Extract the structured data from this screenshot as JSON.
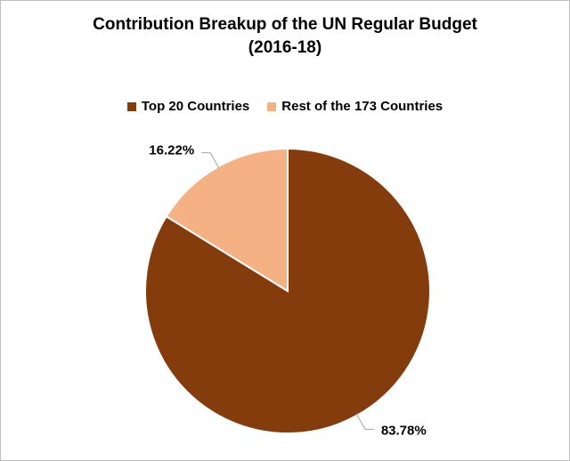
{
  "chart_data": {
    "type": "pie",
    "title_lines": [
      "Contribution Breakup of the UN Regular Budget",
      "(2016-18)"
    ],
    "legend_position": "top",
    "slices": [
      {
        "name": "Top 20 Countries",
        "value": 83.78,
        "label": "83.78%",
        "color": "#843C0C"
      },
      {
        "name": "Rest of the 173 Countries",
        "value": 16.22,
        "label": "16.22%",
        "color": "#F4B183"
      }
    ]
  }
}
